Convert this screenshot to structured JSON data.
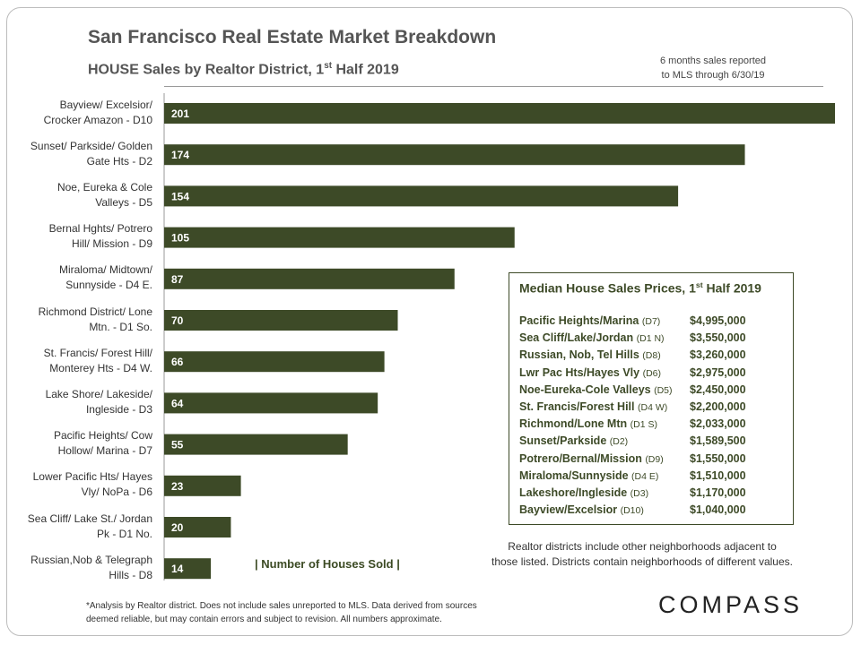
{
  "title": "San Francisco Real Estate Market Breakdown",
  "subtitle_main": "HOUSE Sales by Realtor District, 1",
  "subtitle_sup": "st",
  "subtitle_tail": " Half 2019",
  "note_right_line1": "6 months sales reported",
  "note_right_line2": "to MLS through 6/30/19",
  "axis_caption": "| Number of Houses Sold |",
  "chart_data": {
    "type": "bar",
    "orientation": "horizontal",
    "categories": [
      [
        "Bayview/ Excelsior/",
        "Crocker Amazon - D10"
      ],
      [
        "Sunset/ Parkside/ Golden",
        "Gate Hts - D2"
      ],
      [
        "Noe, Eureka & Cole",
        "Valleys - D5"
      ],
      [
        "Bernal Hghts/ Potrero",
        "Hill/ Mission - D9"
      ],
      [
        "Miraloma/ Midtown/",
        "Sunnyside - D4 E."
      ],
      [
        "Richmond District/ Lone",
        "Mtn. - D1 So."
      ],
      [
        "St. Francis/ Forest Hill/",
        "Monterey Hts - D4 W."
      ],
      [
        "Lake Shore/ Lakeside/",
        "Ingleside - D3"
      ],
      [
        "Pacific Heights/ Cow",
        "Hollow/ Marina - D7"
      ],
      [
        "Lower Pacific Hts/ Hayes",
        "Vly/ NoPa - D6"
      ],
      [
        "Sea Cliff/ Lake St./ Jordan",
        "Pk - D1 No."
      ],
      [
        "Russian,Nob & Telegraph",
        "Hills - D8"
      ]
    ],
    "values": [
      201,
      174,
      154,
      105,
      87,
      70,
      66,
      64,
      55,
      23,
      20,
      14
    ],
    "xlim": [
      0,
      201
    ],
    "bar_color": "#3d4a27",
    "label_color": "#ffffff",
    "grid": false
  },
  "median_box": {
    "title_main": "Median House Sales Prices, 1",
    "title_sup": "st",
    "title_tail": " Half 2019",
    "rows": [
      {
        "name": "Pacific Heights/Marina",
        "district": "(D7)",
        "price": "$4,995,000"
      },
      {
        "name": "Sea Cliff/Lake/Jordan",
        "district": "(D1 N)",
        "price": "$3,550,000"
      },
      {
        "name": "Russian, Nob, Tel Hills",
        "district": "(D8)",
        "price": "$3,260,000"
      },
      {
        "name": "Lwr Pac Hts/Hayes Vly",
        "district": "(D6)",
        "price": "$2,975,000"
      },
      {
        "name": "Noe-Eureka-Cole Valleys",
        "district": "(D5)",
        "price": "$2,450,000"
      },
      {
        "name": "St. Francis/Forest Hill",
        "district": "(D4 W)",
        "price": "$2,200,000"
      },
      {
        "name": "Richmond/Lone Mtn",
        "district": "(D1 S)",
        "price": "$2,033,000"
      },
      {
        "name": "Sunset/Parkside",
        "district": "(D2)",
        "price": "$1,589,500"
      },
      {
        "name": "Potrero/Bernal/Mission",
        "district": "(D9)",
        "price": "$1,550,000"
      },
      {
        "name": "Miraloma/Sunnyside",
        "district": "(D4 E)",
        "price": "$1,510,000"
      },
      {
        "name": "Lakeshore/Ingleside",
        "district": "(D3)",
        "price": "$1,170,000"
      },
      {
        "name": "Bayview/Excelsior",
        "district": "(D10)",
        "price": "$1,040,000"
      }
    ]
  },
  "realtor_note_line1": "Realtor districts include other neighborhoods adjacent to",
  "realtor_note_line2": "those listed. Districts contain neighborhoods of different values.",
  "footnote_line1": "*Analysis by Realtor district. Does not include sales unreported to MLS. Data derived from sources",
  "footnote_line2": "deemed reliable, but may contain errors and subject to revision. All numbers approximate.",
  "logo_text": "COMPASS"
}
